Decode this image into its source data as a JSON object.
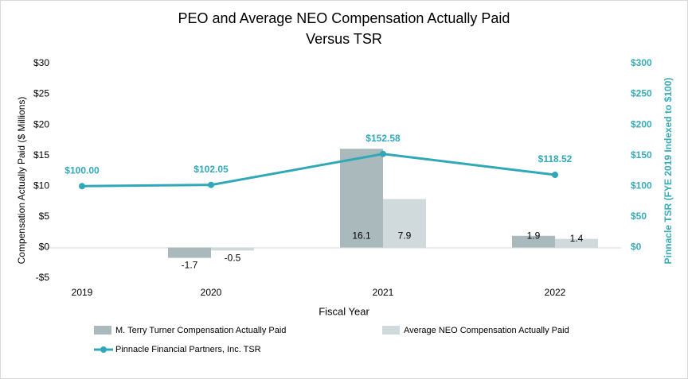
{
  "chart_data": {
    "type": "bar",
    "title": [
      "PEO and Average NEO Compensation Actually Paid",
      "Versus TSR"
    ],
    "x_label": "Fiscal Year",
    "y_label": "Compensation Actually Paid ($ Millions)",
    "y2_label": "Pinnacle TSR (FYE 2019 Indexed to $100)",
    "categories": [
      "2019",
      "2020",
      "2021",
      "2022"
    ],
    "series": [
      {
        "name": "M. Terry Turner Compensation Actually Paid",
        "type": "bar",
        "color": "#a9b9bc",
        "values": [
          null,
          -1.7,
          16.1,
          1.9
        ]
      },
      {
        "name": "Average NEO Compensation Actually Paid",
        "type": "bar",
        "color": "#d0dadc",
        "values": [
          null,
          -0.5,
          7.9,
          1.4
        ]
      },
      {
        "name": "Pinnacle Financial Partners, Inc. TSR",
        "type": "line",
        "axis": "y2",
        "color": "#31a8b8",
        "values": [
          100.0,
          102.05,
          152.58,
          118.52
        ],
        "value_labels": [
          "$100.00",
          "$102.05",
          "$152.58",
          "$118.52"
        ]
      }
    ],
    "ylim": [
      -5,
      30
    ],
    "yticks": [
      {
        "value": -5,
        "label": "-$5"
      },
      {
        "value": 0,
        "label": "$0"
      },
      {
        "value": 5,
        "label": "$5"
      },
      {
        "value": 10,
        "label": "$10"
      },
      {
        "value": 15,
        "label": "$15"
      },
      {
        "value": 20,
        "label": "$20"
      },
      {
        "value": 25,
        "label": "$25"
      },
      {
        "value": 30,
        "label": "$30"
      }
    ],
    "y2lim": [
      -50,
      300
    ],
    "y2ticks": [
      {
        "value": 0,
        "label": "$0"
      },
      {
        "value": 50,
        "label": "$50"
      },
      {
        "value": 100,
        "label": "$100"
      },
      {
        "value": 150,
        "label": "$150"
      },
      {
        "value": 200,
        "label": "$200"
      },
      {
        "value": 250,
        "label": "$250"
      },
      {
        "value": 300,
        "label": "$300"
      }
    ],
    "grid": false
  }
}
